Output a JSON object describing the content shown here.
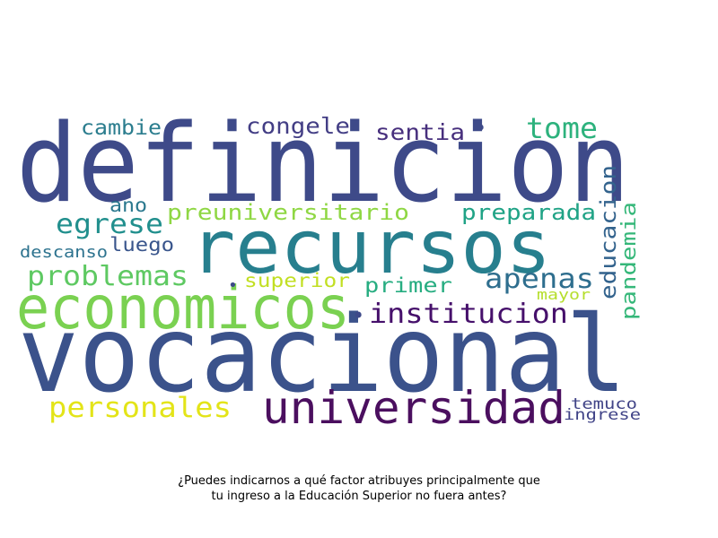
{
  "colors": {
    "background": "#ffffff",
    "caption": "#000000"
  },
  "wordcloud": {
    "words": [
      {
        "text": "definicion",
        "color": "#3e4a89"
      },
      {
        "text": "vocacional",
        "color": "#3b528b"
      },
      {
        "text": "recursos",
        "color": "#277f8e"
      },
      {
        "text": "economicos",
        "color": "#7ad151"
      },
      {
        "text": "universidad",
        "color": "#4b0f5f"
      },
      {
        "text": "institucion",
        "color": "#46106b"
      },
      {
        "text": "apenas",
        "color": "#2e6e8e"
      },
      {
        "text": "tome",
        "color": "#2db27d"
      },
      {
        "text": "personales",
        "color": "#e3e418"
      },
      {
        "text": "problemas",
        "color": "#5ec962"
      },
      {
        "text": "egrese",
        "color": "#218f8d"
      },
      {
        "text": "preuniversitario",
        "color": "#8fd744"
      },
      {
        "text": "preparada",
        "color": "#20a386"
      },
      {
        "text": "congele",
        "color": "#433e85"
      },
      {
        "text": "sentia",
        "color": "#472f7d"
      },
      {
        "text": "cambie",
        "color": "#2b7d8e"
      },
      {
        "text": "primer",
        "color": "#27ad81"
      },
      {
        "text": "educacion",
        "color": "#33638d"
      },
      {
        "text": "pandemia",
        "color": "#35b779"
      },
      {
        "text": "ano",
        "color": "#2a788e"
      },
      {
        "text": "luego",
        "color": "#39558c"
      },
      {
        "text": "descanso",
        "color": "#2c728e"
      },
      {
        "text": "superior",
        "color": "#c2df23"
      },
      {
        "text": "mayor",
        "color": "#b5de2b"
      },
      {
        "text": "temuco",
        "color": "#414487"
      },
      {
        "text": "ingrese",
        "color": "#404387"
      },
      {
        "text": "•",
        "color": "#3e4a89"
      }
    ]
  },
  "caption": {
    "line1": "¿Puedes indicarnos a qué factor atribuyes principalmente que",
    "line2": "tu ingreso a la Educación Superior no fuera antes?"
  }
}
